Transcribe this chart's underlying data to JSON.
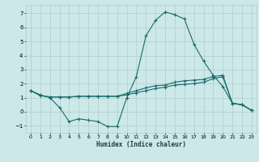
{
  "xlabel": "Humidex (Indice chaleur)",
  "x_values": [
    0,
    1,
    2,
    3,
    4,
    5,
    6,
    7,
    8,
    9,
    10,
    11,
    12,
    13,
    14,
    15,
    16,
    17,
    18,
    19,
    20,
    21,
    22,
    23
  ],
  "series1": [
    1.5,
    1.2,
    1.0,
    0.3,
    -0.7,
    -0.5,
    -0.6,
    -0.7,
    -1.05,
    -1.05,
    1.0,
    2.5,
    5.4,
    6.5,
    7.1,
    6.9,
    6.6,
    4.8,
    3.6,
    2.6,
    1.8,
    0.6,
    0.5,
    0.1
  ],
  "series2": [
    1.5,
    1.15,
    1.05,
    1.05,
    1.05,
    1.1,
    1.1,
    1.1,
    1.1,
    1.1,
    1.3,
    1.5,
    1.7,
    1.85,
    1.9,
    2.1,
    2.2,
    2.25,
    2.3,
    2.5,
    2.6,
    0.6,
    0.5,
    0.1
  ],
  "series3": [
    1.5,
    1.15,
    1.05,
    1.05,
    1.05,
    1.1,
    1.1,
    1.1,
    1.1,
    1.1,
    1.2,
    1.35,
    1.5,
    1.65,
    1.75,
    1.9,
    1.95,
    2.0,
    2.1,
    2.35,
    2.5,
    0.6,
    0.5,
    0.1
  ],
  "line_color": "#1a6b6b",
  "bg_color": "#cce8e8",
  "grid_color": "#b0cccc",
  "ylim": [
    -1.5,
    7.6
  ],
  "xlim": [
    -0.5,
    23.5
  ],
  "yticks": [
    -1,
    0,
    1,
    2,
    3,
    4,
    5,
    6,
    7
  ],
  "xticks": [
    0,
    1,
    2,
    3,
    4,
    5,
    6,
    7,
    8,
    9,
    10,
    11,
    12,
    13,
    14,
    15,
    16,
    17,
    18,
    19,
    20,
    21,
    22,
    23
  ]
}
